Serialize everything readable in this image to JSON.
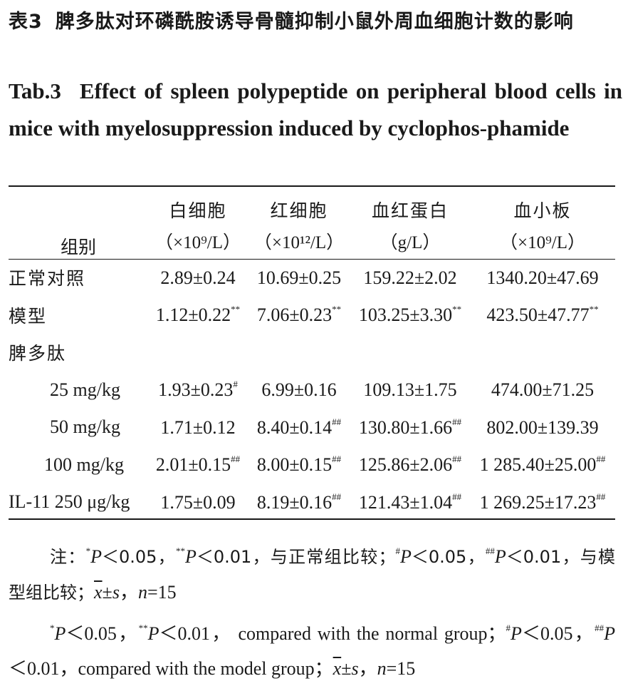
{
  "title_cn": {
    "label": "表3",
    "text": "脾多肽对环磷酰胺诱导骨髓抑制小鼠外周血细胞计数的影响"
  },
  "title_en": {
    "label": "Tab.3",
    "text": "Effect of spleen polypeptide on peripheral blood cells in mice with myelosuppression induced by cyclophos-phamide"
  },
  "table": {
    "group_header": "组别",
    "columns": [
      {
        "name": "白细胞",
        "unit": "（×10⁹/L）"
      },
      {
        "name": "红细胞",
        "unit": "（×10¹²/L）"
      },
      {
        "name": "血红蛋白",
        "unit": "（g/L）"
      },
      {
        "name": "血小板",
        "unit": "（×10⁹/L）"
      }
    ],
    "rows": [
      {
        "group": "正常对照",
        "cells": [
          {
            "v": "2.89±0.24",
            "m": ""
          },
          {
            "v": "10.69±0.25",
            "m": ""
          },
          {
            "v": "159.22±2.02",
            "m": ""
          },
          {
            "v": "1340.20±47.69",
            "m": ""
          }
        ]
      },
      {
        "group": "模型",
        "cells": [
          {
            "v": "1.12±0.22",
            "m": "**"
          },
          {
            "v": "7.06±0.23",
            "m": "**"
          },
          {
            "v": "103.25±3.30",
            "m": "**"
          },
          {
            "v": "423.50±47.77",
            "m": "**"
          }
        ]
      },
      {
        "group": "脾多肽",
        "cells": [
          {
            "v": "",
            "m": ""
          },
          {
            "v": "",
            "m": ""
          },
          {
            "v": "",
            "m": ""
          },
          {
            "v": "",
            "m": ""
          }
        ]
      },
      {
        "group": "25 mg/kg",
        "cells": [
          {
            "v": "1.93±0.23",
            "m": "#"
          },
          {
            "v": "6.99±0.16",
            "m": ""
          },
          {
            "v": "109.13±1.75",
            "m": ""
          },
          {
            "v": "474.00±71.25",
            "m": ""
          }
        ]
      },
      {
        "group": "50 mg/kg",
        "cells": [
          {
            "v": "1.71±0.12",
            "m": ""
          },
          {
            "v": "8.40±0.14",
            "m": "##"
          },
          {
            "v": "130.80±1.66",
            "m": "##"
          },
          {
            "v": "802.00±139.39",
            "m": ""
          }
        ]
      },
      {
        "group": "100 mg/kg",
        "cells": [
          {
            "v": "2.01±0.15",
            "m": "##"
          },
          {
            "v": "8.00±0.15",
            "m": "##"
          },
          {
            "v": "125.86±2.06",
            "m": "##"
          },
          {
            "v": "1 285.40±25.00",
            "m": "##"
          }
        ]
      },
      {
        "group": "IL-11 250 μg/kg",
        "cells": [
          {
            "v": "1.75±0.09",
            "m": ""
          },
          {
            "v": "8.19±0.16",
            "m": "##"
          },
          {
            "v": "121.43±1.04",
            "m": "##"
          },
          {
            "v": "1 269.25±17.23",
            "m": "##"
          }
        ]
      }
    ]
  },
  "notes": {
    "cn": {
      "prefix": "注：",
      "m1": "*",
      "p1": "P",
      "t1": "＜0.05，",
      "m2": "**",
      "p2": "P",
      "t2": "＜0.01，与正常组比较；",
      "m3": "#",
      "p3": "P",
      "t3": "＜0.05，",
      "m4": "##",
      "p4": "P",
      "t4": "＜0.01，与模型组比较；",
      "xbar": "x",
      "pm": "±",
      "s": "s",
      "sep": "，",
      "n": "n",
      "eq": "=15"
    },
    "en": {
      "m1": "*",
      "p1": "P",
      "t1": "＜0.05，",
      "m2": "**",
      "p2": "P",
      "t2": "＜0.01， compared with the normal group；",
      "m3": "#",
      "p3": "P",
      "t3": "＜0.05，",
      "m4": "##",
      "p4": "P",
      "t4": "＜0.01，compared with the model group；",
      "xbar": "x",
      "pm": "±",
      "s": "s",
      "sep": "，",
      "n": "n",
      "eq": "=15"
    }
  }
}
